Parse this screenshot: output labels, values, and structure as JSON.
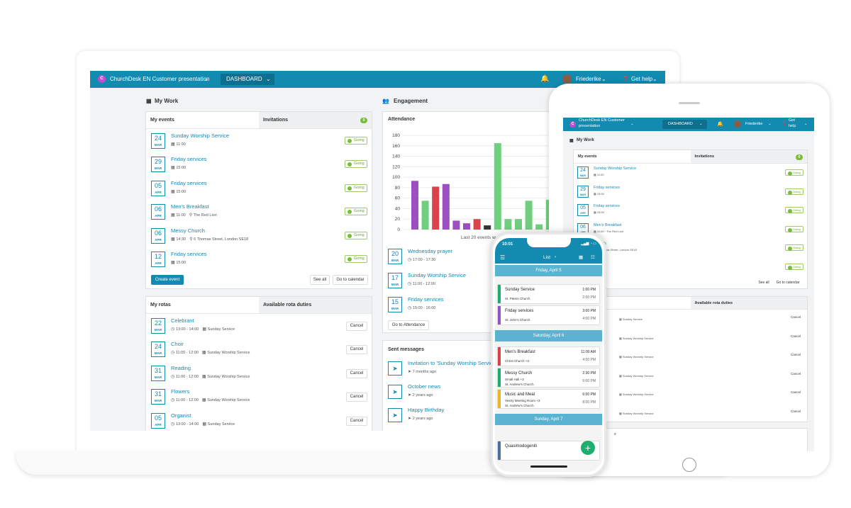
{
  "app": {
    "org_name": "ChurchDesk EN Customer presentation",
    "org_name_short_1": "ChurchDesk EN Customer",
    "org_name_short_2": "presentation",
    "logo_letter": "C",
    "dashboard_label": "DASHBOARD",
    "user_name": "Friederike",
    "help_label": "Get help",
    "help_short_1": "Get",
    "help_short_2": "help",
    "accent": "#138ab0"
  },
  "my_work": {
    "title": "My Work",
    "tab_events": "My events",
    "tab_invitations": "Invitations",
    "invitations_count": "0",
    "events": [
      {
        "day": "24",
        "month": "MAR",
        "title": "Sunday Worship Service",
        "time": "11:00",
        "location": "",
        "status": "Going"
      },
      {
        "day": "29",
        "month": "MAR",
        "title": "Friday services",
        "time": "15:00",
        "location": "",
        "status": "Going"
      },
      {
        "day": "05",
        "month": "APR",
        "title": "Friday services",
        "time": "15:00",
        "location": "",
        "status": "Going"
      },
      {
        "day": "06",
        "month": "APR",
        "title": "Men's Breakfast",
        "time": "11:00",
        "location": "The Red Lion",
        "status": "Going"
      },
      {
        "day": "06",
        "month": "APR",
        "title": "Messy Church",
        "time": "14:30",
        "location": "6 Thomas Street, London SE18",
        "status": "Going"
      },
      {
        "day": "12",
        "month": "APR",
        "title": "Friday services",
        "time": "15:00",
        "location": "",
        "status": "Going"
      }
    ],
    "create_event": "Create event",
    "see_all": "See all",
    "go_to_calendar": "Go to calendar"
  },
  "rotas": {
    "tab_my_rotas": "My rotas",
    "tab_available": "Available rota duties",
    "items": [
      {
        "day": "22",
        "month": "MAR",
        "title": "Celebrant",
        "time": "13:00 - 14:00",
        "event": "Sunday Service"
      },
      {
        "day": "24",
        "month": "MAR",
        "title": "Choir",
        "time": "11:00 - 12:00",
        "event": "Sunday Worship Service"
      },
      {
        "day": "31",
        "month": "MAR",
        "title": "Reading",
        "time": "11:00 - 12:00",
        "event": "Sunday Worship Service"
      },
      {
        "day": "31",
        "month": "MAR",
        "title": "Flowers",
        "time": "11:00 - 12:00",
        "event": "Sunday Worship Service"
      },
      {
        "day": "05",
        "month": "APR",
        "title": "Organist",
        "time": "13:00 - 14:00",
        "event": "Sunday Service"
      }
    ],
    "cancel_label": "Cancel"
  },
  "engagement": {
    "title": "Engagement",
    "attendance_title": "Attendance",
    "caption": "Last 20 events w",
    "go_to_attendance": "Go to Attendance",
    "events": [
      {
        "day": "20",
        "month": "MAR",
        "title": "Wednesday prayer",
        "time": "17:00 - 17:30"
      },
      {
        "day": "17",
        "month": "MAR",
        "title": "Sunday Worship Service",
        "time": "11:00 - 12:00"
      },
      {
        "day": "15",
        "month": "MAR",
        "title": "Friday services",
        "time": "15:00 - 16:00"
      }
    ]
  },
  "chart_data": {
    "type": "bar",
    "title": "Attendance",
    "xlabel": "Last 20 events w",
    "ylabel": "",
    "ylim": [
      0,
      180
    ],
    "yticks": [
      0,
      20,
      40,
      60,
      80,
      100,
      120,
      140,
      160,
      180
    ],
    "values": [
      93,
      55,
      82,
      87,
      17,
      12,
      20,
      8,
      165,
      20,
      20,
      55,
      10,
      57
    ],
    "colors": [
      "#9b4fc0",
      "#6fcf7e",
      "#d9434a",
      "#9b4fc0",
      "#9b4fc0",
      "#9b4fc0",
      "#d9434a",
      "#333333",
      "#6fcf7e",
      "#6fcf7e",
      "#6fcf7e",
      "#6fcf7e",
      "#6fcf7e",
      "#6fcf7e"
    ]
  },
  "messages": {
    "title": "Sent messages",
    "items": [
      {
        "title": "Invitation to 'Sunday Worship Service",
        "ago": "7 months ago"
      },
      {
        "title": "October news",
        "ago": "2 years ago"
      },
      {
        "title": "Happy Birthday",
        "ago": "2 years ago"
      }
    ]
  },
  "tablet": {
    "events": [
      {
        "day": "24",
        "month": "MAR",
        "title": "Sunday Worship Service",
        "time": "11:00"
      },
      {
        "day": "29",
        "month": "MAR",
        "title": "Friday services",
        "time": "15:00"
      },
      {
        "day": "05",
        "month": "APR",
        "title": "Friday services",
        "time": "15:00"
      },
      {
        "day": "06",
        "month": "APR",
        "title": "Men's Breakfast",
        "time": "11:00 · The Red Lion"
      },
      {
        "day": "06",
        "month": "APR",
        "title": "Church",
        "time": "6 Thomas Street, London SE18"
      },
      {
        "day": "12",
        "month": "APR",
        "title": "ces",
        "time": ""
      }
    ],
    "rota_sub": "Sunday Service",
    "rota_sub2": "Sunday Worship Service",
    "bottom_fragment": "s"
  },
  "phone": {
    "clock": "10:01",
    "header": "List",
    "days": [
      "Friday, April 5",
      "Saturday, April 6",
      "Sunday, April 7"
    ],
    "events": [
      {
        "name": "Sunday Service",
        "loc": "St. Peters Church",
        "start": "1:00 PM",
        "end": "2:00 PM",
        "color": "#1fae6e"
      },
      {
        "name": "Friday services",
        "loc": "St. John's Church",
        "start": "3:00 PM",
        "end": "4:00 PM",
        "color": "#9b4fc0"
      },
      {
        "name": "Men's Breakfast",
        "loc": "Christ Church +3",
        "start": "11:00 AM",
        "end": "4:00 PM",
        "color": "#d9434a"
      },
      {
        "name": "Messy Church",
        "loc": "Small Hall +3",
        "loc2": "St. Andrew's Church",
        "start": "2:30 PM",
        "end": "5:00 PM",
        "color": "#1fae6e"
      },
      {
        "name": "Music and Meal",
        "loc": "Vestry Meeting Room +3",
        "loc2": "St. Andrew's Church",
        "start": "6:00 PM",
        "end": "8:00 PM",
        "color": "#f0b429"
      },
      {
        "name": "Quasimodogeniti",
        "loc": "",
        "start": "",
        "end": "",
        "color": "#4a6fa5"
      }
    ]
  }
}
